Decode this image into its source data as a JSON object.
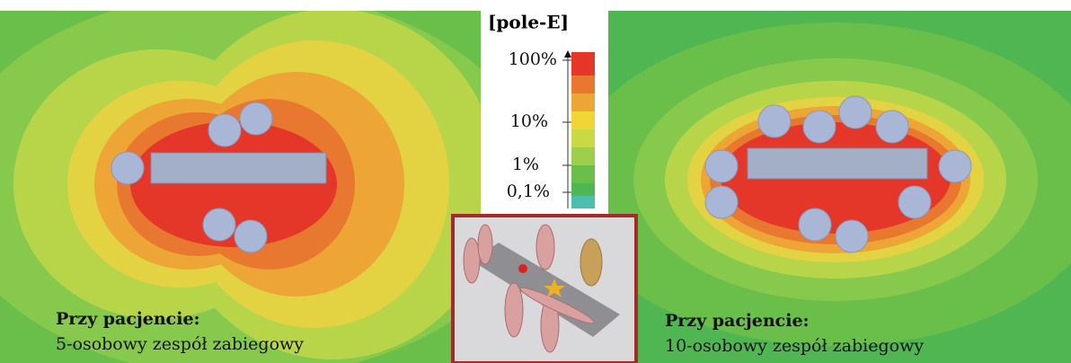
{
  "legend": {
    "title": "[pole-E]",
    "labels": [
      "100%",
      "10%",
      "1%",
      "0,1%"
    ]
  },
  "panels": [
    {
      "title": "Przy pacjencie:",
      "subtitle": "5-osobowy zespół zabiegowy"
    },
    {
      "title": "Przy pacjencie:",
      "subtitle": "10-osobowy zespół zabiegowy"
    }
  ]
}
